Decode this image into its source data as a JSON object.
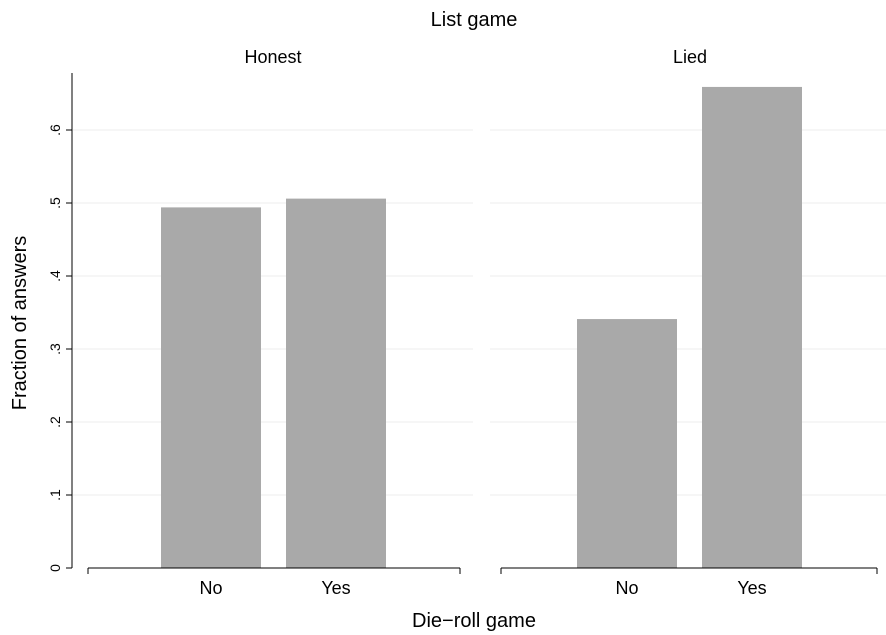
{
  "chart_data": {
    "type": "bar",
    "title": "List game",
    "xlabel": "Die−roll game",
    "ylabel": "Fraction of answers",
    "ylim": [
      0,
      0.7
    ],
    "yticks": [
      {
        "value": 0,
        "label": "0"
      },
      {
        "value": 0.1,
        "label": ".1"
      },
      {
        "value": 0.2,
        "label": ".2"
      },
      {
        "value": 0.3,
        "label": ".3"
      },
      {
        "value": 0.4,
        "label": ".4"
      },
      {
        "value": 0.5,
        "label": ".5"
      },
      {
        "value": 0.6,
        "label": ".6"
      }
    ],
    "categories": [
      "No",
      "Yes"
    ],
    "bar_color": "#a9a9a9",
    "grid": true,
    "panels": [
      {
        "name": "Honest",
        "values": [
          0.494,
          0.506
        ]
      },
      {
        "name": "Lied",
        "values": [
          0.341,
          0.659
        ]
      }
    ]
  }
}
